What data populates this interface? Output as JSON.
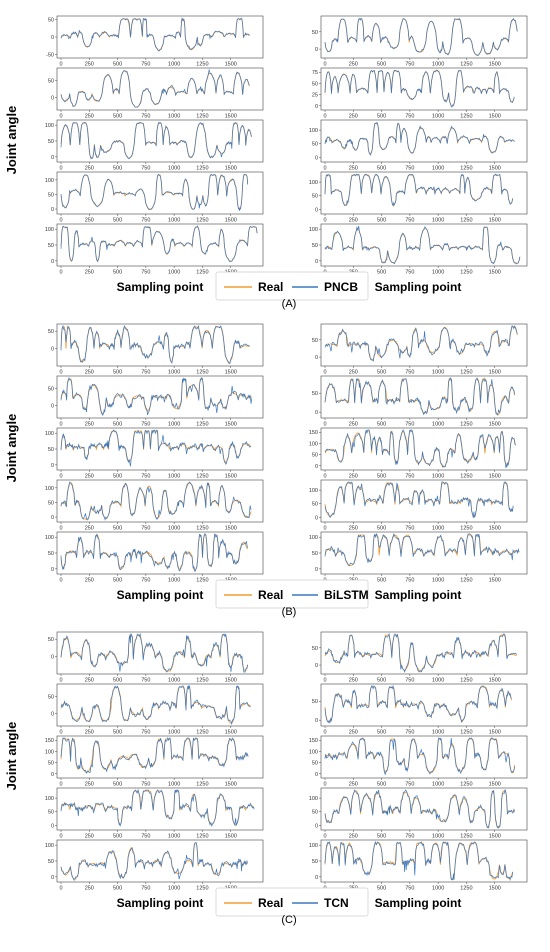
{
  "figure": {
    "ylabel": "Joint angle",
    "xlabel": "Sampling point",
    "real_label": "Real",
    "real_color": "#F39C34",
    "pred_color": "#3A78C2"
  },
  "chart_data": [
    {
      "type": "line",
      "panel_label": "(A)",
      "model": "PNCB",
      "xlabel": "Sampling point",
      "ylabel": "Joint angle",
      "xlim": [
        0,
        1750
      ],
      "x_ticks": [
        0,
        250,
        500,
        750,
        1000,
        1250,
        1500
      ],
      "series": [
        {
          "name": "Real",
          "color": "#F39C34"
        },
        {
          "name": "PNCB",
          "color": "#3A78C2"
        }
      ],
      "subplots": [
        {
          "column": "left",
          "row": 1,
          "yticks": [
            -50,
            0,
            50
          ],
          "ylim": [
            -55,
            55
          ],
          "seed": 11
        },
        {
          "column": "left",
          "row": 2,
          "yticks": [
            0,
            50
          ],
          "ylim": [
            -30,
            80
          ],
          "seed": 12
        },
        {
          "column": "left",
          "row": 3,
          "yticks": [
            0,
            50,
            100
          ],
          "ylim": [
            -10,
            110
          ],
          "seed": 13
        },
        {
          "column": "left",
          "row": 4,
          "yticks": [
            0,
            50,
            100
          ],
          "ylim": [
            -10,
            120
          ],
          "seed": 14
        },
        {
          "column": "left",
          "row": 5,
          "yticks": [
            0,
            50,
            100
          ],
          "ylim": [
            -10,
            110
          ],
          "seed": 15
        },
        {
          "column": "right",
          "row": 1,
          "yticks": [
            0,
            50
          ],
          "ylim": [
            -20,
            90
          ],
          "seed": 21
        },
        {
          "column": "right",
          "row": 2,
          "yticks": [
            0,
            25,
            50,
            75
          ],
          "ylim": [
            -5,
            80
          ],
          "seed": 22
        },
        {
          "column": "right",
          "row": 3,
          "yticks": [
            0,
            50,
            100
          ],
          "ylim": [
            -10,
            130
          ],
          "seed": 23
        },
        {
          "column": "right",
          "row": 4,
          "yticks": [
            0,
            50,
            100
          ],
          "ylim": [
            -10,
            130
          ],
          "seed": 24
        },
        {
          "column": "right",
          "row": 5,
          "yticks": [
            0,
            50,
            100
          ],
          "ylim": [
            -10,
            110
          ],
          "seed": 25
        }
      ]
    },
    {
      "type": "line",
      "panel_label": "(B)",
      "model": "BiLSTM",
      "xlabel": "Sampling point",
      "ylabel": "Joint angle",
      "xlim": [
        0,
        1750
      ],
      "x_ticks": [
        0,
        250,
        500,
        750,
        1000,
        1250,
        1500
      ],
      "series": [
        {
          "name": "Real",
          "color": "#F39C34"
        },
        {
          "name": "BiLSTM",
          "color": "#3A78C2"
        }
      ],
      "subplots": [
        {
          "column": "left",
          "row": 1,
          "yticks": [
            0,
            50
          ],
          "ylim": [
            -45,
            65
          ],
          "seed": 31
        },
        {
          "column": "left",
          "row": 2,
          "yticks": [
            0,
            50
          ],
          "ylim": [
            -30,
            80
          ],
          "seed": 32
        },
        {
          "column": "left",
          "row": 3,
          "yticks": [
            0,
            50,
            100
          ],
          "ylim": [
            -10,
            110
          ],
          "seed": 33
        },
        {
          "column": "left",
          "row": 4,
          "yticks": [
            0,
            50,
            100
          ],
          "ylim": [
            -10,
            120
          ],
          "seed": 34
        },
        {
          "column": "left",
          "row": 5,
          "yticks": [
            0,
            50,
            100
          ],
          "ylim": [
            -10,
            110
          ],
          "seed": 35
        },
        {
          "column": "right",
          "row": 1,
          "yticks": [
            0,
            50
          ],
          "ylim": [
            -20,
            90
          ],
          "seed": 41
        },
        {
          "column": "right",
          "row": 2,
          "yticks": [
            0,
            50
          ],
          "ylim": [
            -10,
            90
          ],
          "seed": 42
        },
        {
          "column": "right",
          "row": 3,
          "yticks": [
            0,
            50,
            100,
            150
          ],
          "ylim": [
            -10,
            160
          ],
          "seed": 43
        },
        {
          "column": "right",
          "row": 4,
          "yticks": [
            0,
            50,
            100
          ],
          "ylim": [
            -10,
            130
          ],
          "seed": 44
        },
        {
          "column": "right",
          "row": 5,
          "yticks": [
            0,
            50,
            100
          ],
          "ylim": [
            -10,
            110
          ],
          "seed": 45
        }
      ]
    },
    {
      "type": "line",
      "panel_label": "(C)",
      "model": "TCN",
      "xlabel": "Sampling point",
      "ylabel": "Joint angle",
      "xlim": [
        0,
        1750
      ],
      "x_ticks": [
        0,
        250,
        500,
        750,
        1000,
        1250,
        1500
      ],
      "series": [
        {
          "name": "Real",
          "color": "#F39C34"
        },
        {
          "name": "TCN",
          "color": "#3A78C2"
        }
      ],
      "subplots": [
        {
          "column": "left",
          "row": 1,
          "yticks": [
            0,
            50
          ],
          "ylim": [
            -45,
            65
          ],
          "seed": 51
        },
        {
          "column": "left",
          "row": 2,
          "yticks": [
            0,
            50
          ],
          "ylim": [
            -30,
            80
          ],
          "seed": 52
        },
        {
          "column": "left",
          "row": 3,
          "yticks": [
            0,
            50,
            100,
            150
          ],
          "ylim": [
            -10,
            160
          ],
          "seed": 53
        },
        {
          "column": "left",
          "row": 4,
          "yticks": [
            0,
            50,
            100
          ],
          "ylim": [
            -10,
            130
          ],
          "seed": 54
        },
        {
          "column": "left",
          "row": 5,
          "yticks": [
            0,
            50,
            100
          ],
          "ylim": [
            -10,
            110
          ],
          "seed": 55
        },
        {
          "column": "right",
          "row": 1,
          "yticks": [
            0,
            50
          ],
          "ylim": [
            -20,
            90
          ],
          "seed": 61
        },
        {
          "column": "right",
          "row": 2,
          "yticks": [
            0,
            50
          ],
          "ylim": [
            -10,
            90
          ],
          "seed": 62
        },
        {
          "column": "right",
          "row": 3,
          "yticks": [
            0,
            50,
            100,
            150
          ],
          "ylim": [
            -10,
            160
          ],
          "seed": 63
        },
        {
          "column": "right",
          "row": 4,
          "yticks": [
            0,
            50,
            100
          ],
          "ylim": [
            -10,
            130
          ],
          "seed": 64
        },
        {
          "column": "right",
          "row": 5,
          "yticks": [
            0,
            50,
            100
          ],
          "ylim": [
            -10,
            110
          ],
          "seed": 65
        }
      ]
    }
  ]
}
